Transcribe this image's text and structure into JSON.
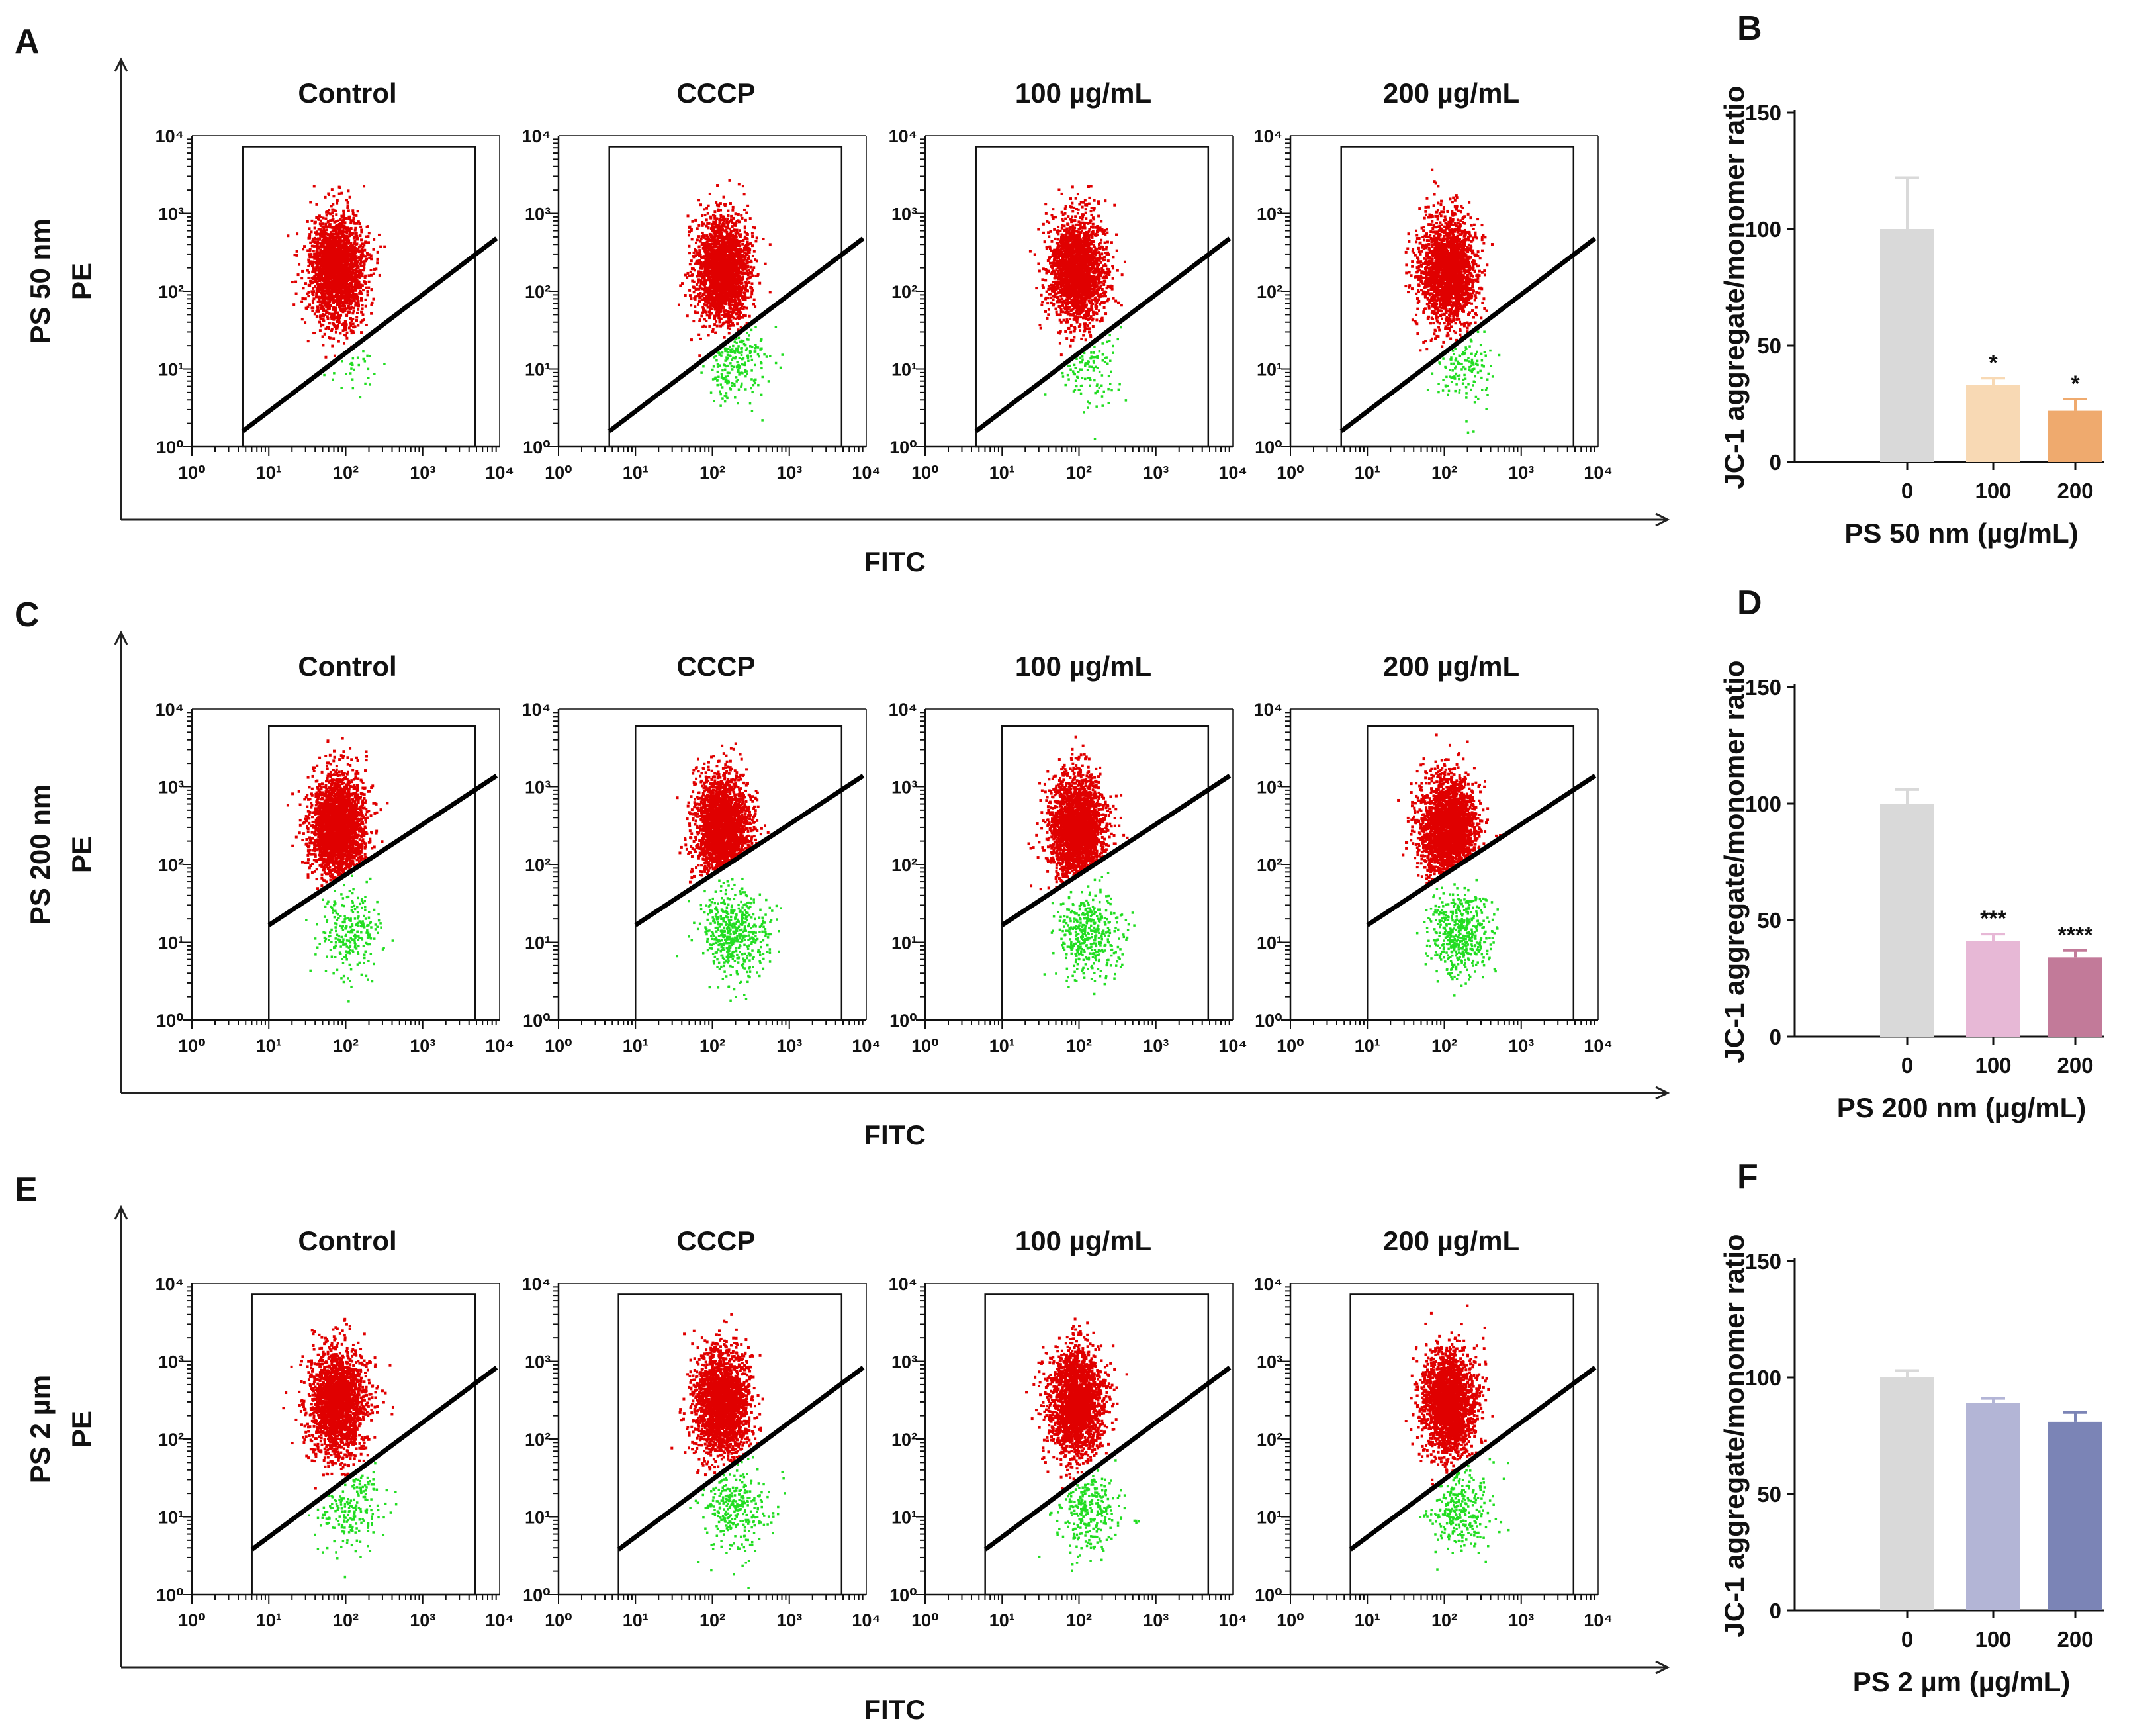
{
  "figure": {
    "rows": [
      {
        "flow_panel_letter": "A",
        "bar_panel_letter": "B",
        "row_label": "PS 50 nm",
        "y_axis_label": "PE",
        "x_axis_label": "FITC",
        "conditions": [
          "Control",
          "CCCP",
          "100 µg/mL",
          "200 µg/mL"
        ]
      },
      {
        "flow_panel_letter": "C",
        "bar_panel_letter": "D",
        "row_label": "PS 200 nm",
        "y_axis_label": "PE",
        "x_axis_label": "FITC",
        "conditions": [
          "Control",
          "CCCP",
          "100 µg/mL",
          "200 µg/mL"
        ]
      },
      {
        "flow_panel_letter": "E",
        "bar_panel_letter": "F",
        "row_label": "PS 2 µm",
        "y_axis_label": "PE",
        "x_axis_label": "FITC",
        "conditions": [
          "Control",
          "CCCP",
          "100 µg/mL",
          "200 µg/mL"
        ]
      }
    ],
    "flow_tick_labels": [
      "10⁰",
      "10¹",
      "10²",
      "10³",
      "10⁴"
    ],
    "colors": {
      "aggregate_dots": "#e00000",
      "monomer_dots": "#22dd22",
      "gate_line": "#000000"
    }
  },
  "chart_data": [
    {
      "type": "bar",
      "panel": "B",
      "title": "",
      "xlabel": "PS 50 nm (µg/mL)",
      "ylabel": "JC-1 aggregate/monomer ratio",
      "categories": [
        "0",
        "100",
        "200"
      ],
      "values": [
        100,
        33,
        22
      ],
      "errors": [
        22,
        3,
        5
      ],
      "significance": [
        "",
        "*",
        "*"
      ],
      "colors": [
        "#d9d9d9",
        "#f8d9b4",
        "#efaa6e"
      ],
      "ylim": [
        0,
        150
      ],
      "yticks": [
        0,
        50,
        100,
        150
      ]
    },
    {
      "type": "bar",
      "panel": "D",
      "title": "",
      "xlabel": "PS 200 nm (µg/mL)",
      "ylabel": "JC-1 aggregate/monomer ratio",
      "categories": [
        "0",
        "100",
        "200"
      ],
      "values": [
        100,
        41,
        34
      ],
      "errors": [
        6,
        3,
        3
      ],
      "significance": [
        "",
        "***",
        "****"
      ],
      "colors": [
        "#d9d9d9",
        "#e7b8d6",
        "#c27a99"
      ],
      "ylim": [
        0,
        150
      ],
      "yticks": [
        0,
        50,
        100,
        150
      ]
    },
    {
      "type": "bar",
      "panel": "F",
      "title": "",
      "xlabel": "PS 2 µm (µg/mL)",
      "ylabel": "JC-1 aggregate/monomer ratio",
      "categories": [
        "0",
        "100",
        "200"
      ],
      "values": [
        100,
        89,
        81
      ],
      "errors": [
        3,
        2,
        4
      ],
      "significance": [
        "",
        "",
        ""
      ],
      "colors": [
        "#d9d9d9",
        "#b3b5d6",
        "#7b84b6"
      ],
      "ylim": [
        0,
        150
      ],
      "yticks": [
        0,
        50,
        100,
        150
      ]
    }
  ]
}
